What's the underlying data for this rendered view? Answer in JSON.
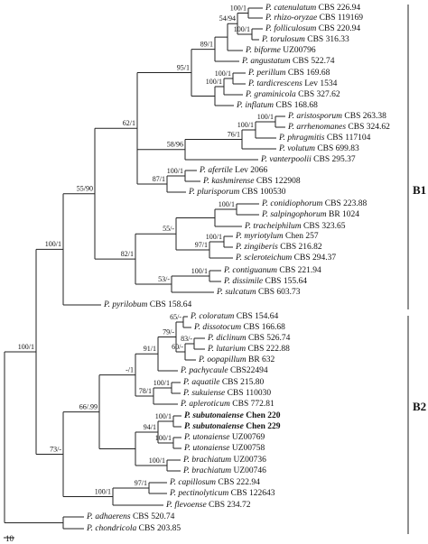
{
  "taxa": [
    {
      "name": "P. catenulatum",
      "strain": "CBS 226.94"
    },
    {
      "name": "P. rhizo-oryzae",
      "strain": "CBS 119169"
    },
    {
      "name": "P. folliculosum",
      "strain": "CBS 220.94"
    },
    {
      "name": "P. torulosum",
      "strain": "CBS 316.33"
    },
    {
      "name": "P. biforme",
      "strain": "UZ00796"
    },
    {
      "name": "P. angustatum",
      "strain": "CBS 522.74"
    },
    {
      "name": "P. perillum",
      "strain": "CBS 169.68"
    },
    {
      "name": "P. tardicrescens",
      "strain": "Lev 1534"
    },
    {
      "name": "P. graminicola",
      "strain": "CBS 327.62"
    },
    {
      "name": "P. inflatum",
      "strain": "CBS 168.68"
    },
    {
      "name": "P. aristosporum",
      "strain": "CBS 263.38"
    },
    {
      "name": "P. arrhenomanes",
      "strain": "CBS 324.62"
    },
    {
      "name": "P. phragmitis",
      "strain": "CBS 117104"
    },
    {
      "name": "P. volutum",
      "strain": "CBS 699.83"
    },
    {
      "name": "P. vanterpoolii",
      "strain": "CBS 295.37"
    },
    {
      "name": "P. afertile",
      "strain": "Lev 2066"
    },
    {
      "name": "P. kashmirense",
      "strain": "CBS 122908"
    },
    {
      "name": "P. plurisporum",
      "strain": "CBS 100530"
    },
    {
      "name": "P. conidiophorum",
      "strain": "CBS 223.88"
    },
    {
      "name": "P. salpingophorum",
      "strain": "BR 1024"
    },
    {
      "name": "P. tracheiphilum",
      "strain": "CBS 323.65"
    },
    {
      "name": "P. myriotylum",
      "strain": "Chen 257"
    },
    {
      "name": "P. zingiberis",
      "strain": "CBS 216.82"
    },
    {
      "name": "P. scleroteichum",
      "strain": "CBS 294.37"
    },
    {
      "name": "P. contiguanum",
      "strain": "CBS 221.94"
    },
    {
      "name": "P. dissimile",
      "strain": "CBS 155.64"
    },
    {
      "name": "P. sulcatum",
      "strain": "CBS 603.73"
    },
    {
      "name": "P. pyrilobum",
      "strain": "CBS 158.64"
    },
    {
      "name": "P. coloratum",
      "strain": "CBS 154.64"
    },
    {
      "name": "P. dissotocum",
      "strain": "CBS 166.68"
    },
    {
      "name": "P. diclinum",
      "strain": "CBS 526.74"
    },
    {
      "name": "P. lutarium",
      "strain": "CBS 222.88"
    },
    {
      "name": "P. oopapillum",
      "strain": "BR 632"
    },
    {
      "name": "P. pachycaule",
      "strain": "CBS22494"
    },
    {
      "name": "P. aquatile",
      "strain": "CBS 215.80"
    },
    {
      "name": "P. sukuiense",
      "strain": "CBS 110030"
    },
    {
      "name": "P. apleroticum",
      "strain": "CBS 772.81"
    },
    {
      "name": "P. subutonaiense",
      "strain": "Chen 220"
    },
    {
      "name": "P. subutonaiense",
      "strain": "Chen 229"
    },
    {
      "name": "P. utonaiense",
      "strain": "UZ00769"
    },
    {
      "name": "P. utonaiense",
      "strain": "UZ00758"
    },
    {
      "name": "P. brachiatum",
      "strain": "UZ00736"
    },
    {
      "name": "P. brachiatum",
      "strain": "UZ00746"
    },
    {
      "name": "P. capillosum",
      "strain": "CBS 222.94"
    },
    {
      "name": "P. pectinolyticum",
      "strain": "CBS 122643"
    },
    {
      "name": "P. flevoense",
      "strain": "CBS 234.72"
    },
    {
      "name": "P. adhaerens",
      "strain": "CBS 520.74"
    },
    {
      "name": "P. chondricola",
      "strain": "CBS 203.85"
    }
  ],
  "supports": [
    "100/1",
    "100/1",
    "54/94",
    "89/1",
    "100/1",
    "100/1",
    "95/1",
    "100/1",
    "100/1",
    "76/1",
    "58/96",
    "100/1",
    "87/1",
    "62/1",
    "100/1",
    "100/1",
    "97/1",
    "55/-",
    "100/1",
    "53/-",
    "82/1",
    "55/90",
    "100/1",
    "65/-",
    "83/-",
    "60/-",
    "79/-",
    "91/1",
    "100/1",
    "78/1",
    "-/1",
    "100/1",
    "100/1",
    "94/1",
    "100/1",
    "66/.99",
    "97/1",
    "100/1",
    "73/-",
    "100/1"
  ],
  "clades": [
    "B1",
    "B2"
  ],
  "scale": "10"
}
